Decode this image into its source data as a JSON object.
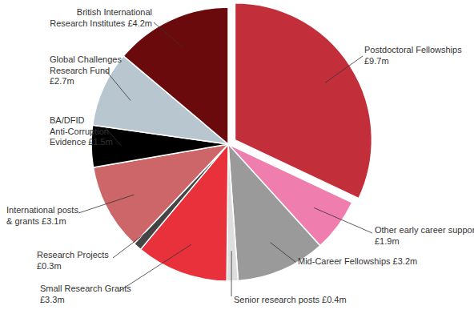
{
  "chart_data": {
    "type": "pie",
    "categories": [
      "Postdoctoral Fellowships",
      "Other early career support",
      "Mid-Career Fellowships",
      "Senior research posts",
      "Small Research Grants",
      "Research Projects",
      "International posts & grants",
      "BA/DFID Anti-Corruption Evidence",
      "Global Challenges Research Fund",
      "British International Research Institutes"
    ],
    "values": [
      9.7,
      1.9,
      3.2,
      0.4,
      3.3,
      0.3,
      3.1,
      1.5,
      2.7,
      4.2
    ],
    "value_labels": [
      "£9.7m",
      "£1.9m",
      "£3.2m",
      "£0.4m",
      "£3.3m",
      "£0.3m",
      "£3.1m",
      "£1.5m",
      "£2.7m",
      "£4.2m"
    ],
    "colors": [
      "#c22f3b",
      "#ef7eae",
      "#9a9a9a",
      "#dedede",
      "#e8313a",
      "#454545",
      "#cd6668",
      "#000000",
      "#b8c6cf",
      "#6a0a0c"
    ],
    "data_labels": true
  }
}
